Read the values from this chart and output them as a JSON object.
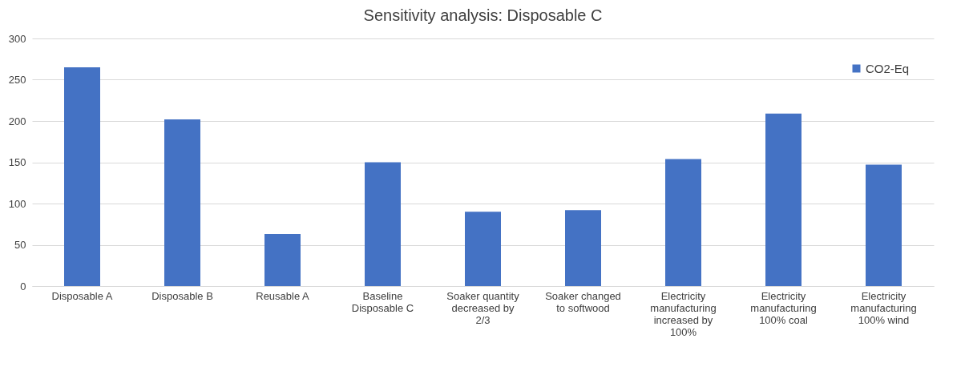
{
  "chart_data": {
    "type": "bar",
    "title": "Sensitivity analysis: Disposable C",
    "categories": [
      "Disposable A",
      "Disposable B",
      "Reusable A",
      "Baseline Disposable C",
      "Soaker quantity decreased by 2/3",
      "Soaker changed to softwood",
      "Electricity manufacturing increased by 100%",
      "Electricity manufacturing 100% coal",
      "Electricity manufacturing 100% wind"
    ],
    "series": [
      {
        "name": "CO2-Eq",
        "color": "#4472c4",
        "values": [
          265,
          202,
          63,
          150,
          90,
          92,
          154,
          209,
          147
        ]
      }
    ],
    "ylim": [
      0,
      300
    ],
    "yticks": [
      0,
      50,
      100,
      150,
      200,
      250,
      300
    ],
    "grid": "y",
    "legend": "top right"
  }
}
